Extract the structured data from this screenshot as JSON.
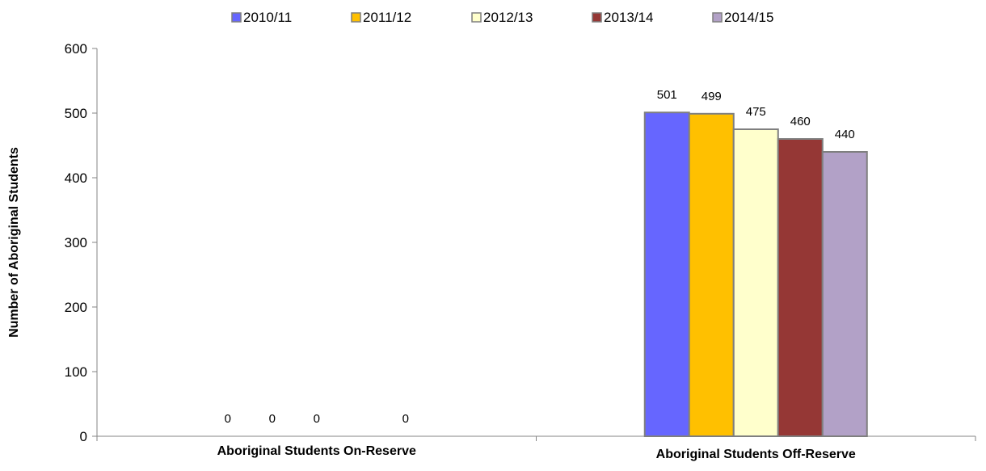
{
  "chart_data": {
    "type": "bar",
    "title": "",
    "xlabel": "",
    "ylabel": "Number of Aboriginal Students",
    "ylim": [
      0,
      600
    ],
    "yticks": [
      0,
      100,
      200,
      300,
      400,
      500,
      600
    ],
    "grid": false,
    "legend_position": "top",
    "categories": [
      "Aboriginal Students On-Reserve",
      "Aboriginal Students Off-Reserve"
    ],
    "series": [
      {
        "name": "2010/11",
        "color": "#6666ff",
        "values": [
          0,
          501
        ]
      },
      {
        "name": "2011/12",
        "color": "#ffc000",
        "values": [
          0,
          499
        ]
      },
      {
        "name": "2012/13",
        "color": "#ffffcc",
        "values": [
          0,
          475
        ]
      },
      {
        "name": "2013/14",
        "color": "#953735",
        "values": [
          null,
          460
        ]
      },
      {
        "name": "2014/15",
        "color": "#b2a1c7",
        "values": [
          0,
          440
        ]
      }
    ],
    "data_labels": [
      [
        "0",
        "0",
        "0",
        null,
        "0"
      ],
      [
        "501",
        "499",
        "475",
        "460",
        "440"
      ]
    ]
  }
}
